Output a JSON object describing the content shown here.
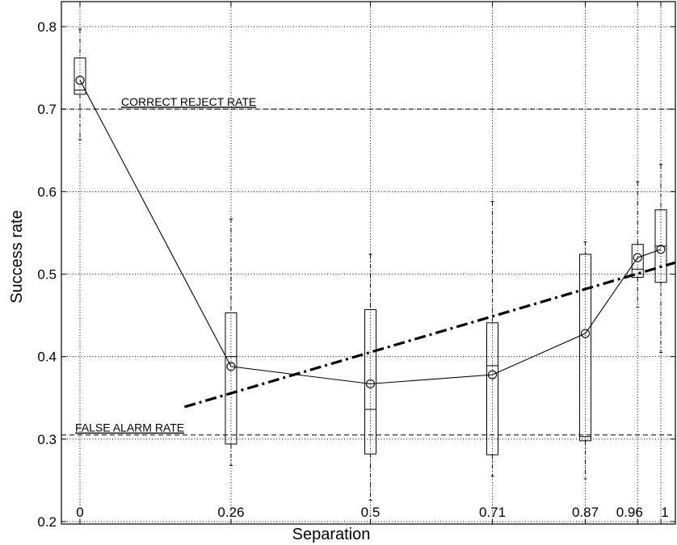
{
  "chart_data": {
    "type": "box",
    "xlabel": "Separation",
    "ylabel": "Success rate",
    "xlim": [
      0,
      1
    ],
    "ylim": [
      0.2,
      0.8
    ],
    "grid": true,
    "x_ticks": [
      {
        "value": 0,
        "label": "0"
      },
      {
        "value": 0.26,
        "label": "0.26"
      },
      {
        "value": 0.5,
        "label": "0.5"
      },
      {
        "value": 0.71,
        "label": "0.71"
      },
      {
        "value": 0.87,
        "label": "0.87"
      },
      {
        "value": 0.96,
        "label": "0.96"
      },
      {
        "value": 1,
        "label": "1"
      }
    ],
    "y_ticks": [
      {
        "value": 0.2,
        "label": "0.2"
      },
      {
        "value": 0.3,
        "label": "0.3"
      },
      {
        "value": 0.4,
        "label": "0.4"
      },
      {
        "value": 0.5,
        "label": "0.5"
      },
      {
        "value": 0.6,
        "label": "0.6"
      },
      {
        "value": 0.7,
        "label": "0.7"
      },
      {
        "value": 0.8,
        "label": "0.8"
      }
    ],
    "boxes": [
      {
        "x": 0,
        "q1": 0.718,
        "median": 0.723,
        "q3": 0.762,
        "whisker_low": 0.663,
        "whisker_high": 0.797
      },
      {
        "x": 0.26,
        "q1": 0.294,
        "median": 0.4,
        "q3": 0.453,
        "whisker_low": 0.268,
        "whisker_high": 0.567
      },
      {
        "x": 0.5,
        "q1": 0.282,
        "median": 0.336,
        "q3": 0.457,
        "whisker_low": 0.226,
        "whisker_high": 0.524
      },
      {
        "x": 0.71,
        "q1": 0.281,
        "median": 0.389,
        "q3": 0.441,
        "whisker_low": 0.255,
        "whisker_high": 0.588
      },
      {
        "x": 0.87,
        "q1": 0.298,
        "median": 0.303,
        "q3": 0.524,
        "whisker_low": 0.252,
        "whisker_high": 0.539
      },
      {
        "x": 0.96,
        "q1": 0.496,
        "median": 0.506,
        "q3": 0.536,
        "whisker_low": 0.46,
        "whisker_high": 0.612
      },
      {
        "x": 1,
        "q1": 0.49,
        "median": 0.534,
        "q3": 0.578,
        "whisker_low": 0.405,
        "whisker_high": 0.633
      }
    ],
    "series": [
      {
        "type": "line-marker",
        "marker": "circle",
        "x": [
          0,
          0.26,
          0.5,
          0.71,
          0.87,
          0.96,
          1
        ],
        "y": [
          0.735,
          0.388,
          0.367,
          0.378,
          0.428,
          0.52,
          0.53
        ]
      }
    ],
    "trend_line": {
      "style": "dash-dot",
      "x": [
        0.18,
        1.03
      ],
      "y": [
        0.339,
        0.514
      ]
    },
    "reference_lines": [
      {
        "label": "CORRECT REJECT RATE",
        "y": 0.7
      },
      {
        "label": "FALSE ALARM RATE",
        "y": 0.305
      }
    ]
  }
}
